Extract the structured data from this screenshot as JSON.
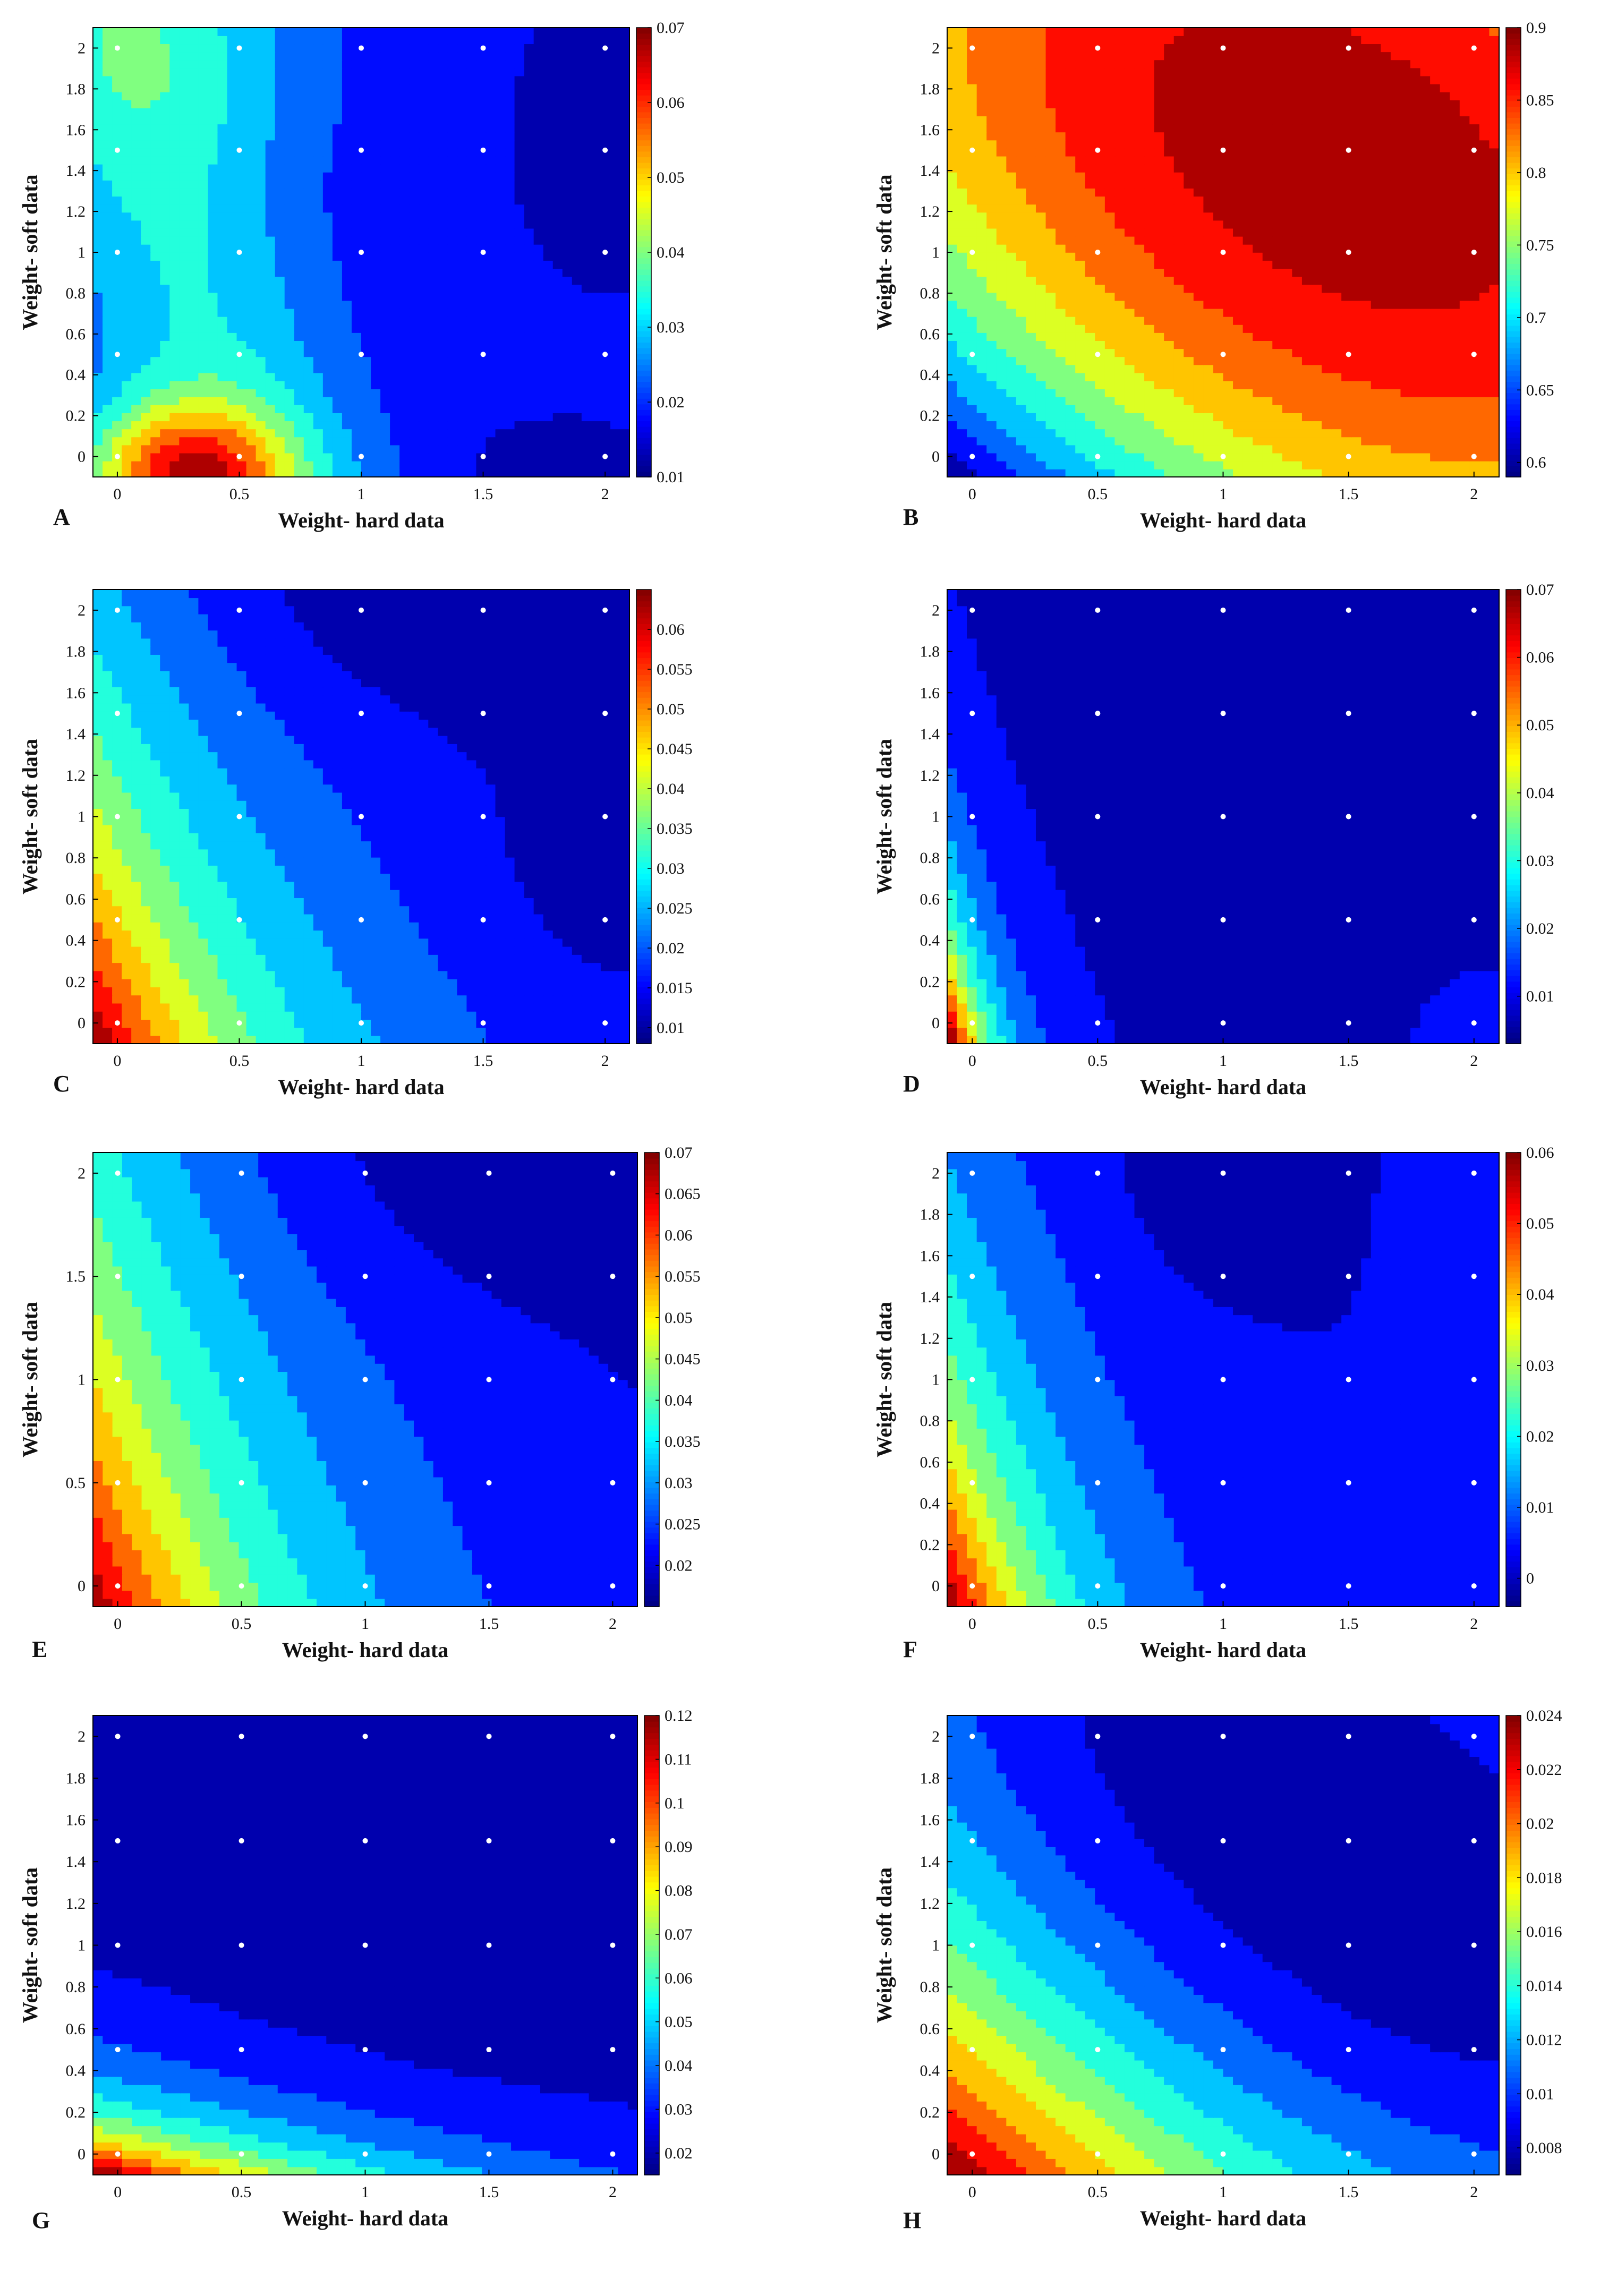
{
  "colormap": "jet",
  "chart_data": [
    {
      "panel": "A",
      "type": "contour",
      "xlabel": "Weight- hard data",
      "ylabel": "Weight- soft data",
      "xlim": [
        -0.1,
        2.1
      ],
      "ylim": [
        -0.1,
        2.1
      ],
      "xticks": [
        "0",
        "0.5",
        "1",
        "1.5",
        "2"
      ],
      "yticks": [
        "0",
        "0.2",
        "0.4",
        "0.6",
        "0.8",
        "1",
        "1.2",
        "1.4",
        "1.6",
        "1.8",
        "2"
      ],
      "colorbar": {
        "min": 0.01,
        "max": 0.07,
        "ticks": [
          "0.01",
          "0.02",
          "0.03",
          "0.04",
          "0.05",
          "0.06",
          "0.07"
        ]
      },
      "sample_points": {
        "x": [
          0,
          0.5,
          1,
          1.5,
          2
        ],
        "y": [
          0,
          0.5,
          1,
          1.5,
          2
        ]
      },
      "field_range": [
        0.012,
        0.068
      ],
      "field": "A"
    },
    {
      "panel": "B",
      "type": "contour",
      "xlabel": "Weight- hard data",
      "ylabel": "Weight- soft data",
      "xlim": [
        -0.1,
        2.1
      ],
      "ylim": [
        -0.1,
        2.1
      ],
      "xticks": [
        "0",
        "0.5",
        "1",
        "1.5",
        "2"
      ],
      "yticks": [
        "0",
        "0.2",
        "0.4",
        "0.6",
        "0.8",
        "1",
        "1.2",
        "1.4",
        "1.6",
        "1.8",
        "2"
      ],
      "colorbar": {
        "min": 0.59,
        "max": 0.9,
        "ticks": [
          "0.6",
          "0.65",
          "0.7",
          "0.75",
          "0.8",
          "0.85",
          "0.9"
        ]
      },
      "sample_points": {
        "x": [
          0,
          0.5,
          1,
          1.5,
          2
        ],
        "y": [
          0,
          0.5,
          1,
          1.5,
          2
        ]
      },
      "field_range": [
        0.6,
        0.89
      ],
      "field": "B"
    },
    {
      "panel": "C",
      "type": "contour",
      "xlabel": "Weight- hard data",
      "ylabel": "Weight- soft data",
      "xlim": [
        -0.1,
        2.1
      ],
      "ylim": [
        -0.1,
        2.1
      ],
      "xticks": [
        "0",
        "0.5",
        "1",
        "1.5",
        "2"
      ],
      "yticks": [
        "0",
        "0.2",
        "0.4",
        "0.6",
        "0.8",
        "1",
        "1.2",
        "1.4",
        "1.6",
        "1.8",
        "2"
      ],
      "colorbar": {
        "min": 0.008,
        "max": 0.065,
        "ticks": [
          "0.01",
          "0.015",
          "0.02",
          "0.025",
          "0.03",
          "0.035",
          "0.04",
          "0.045",
          "0.05",
          "0.055",
          "0.06"
        ]
      },
      "sample_points": {
        "x": [
          0,
          0.5,
          1,
          1.5,
          2
        ],
        "y": [
          0,
          0.5,
          1,
          1.5,
          2
        ]
      },
      "field_range": [
        0.009,
        0.064
      ],
      "field": "C"
    },
    {
      "panel": "D",
      "type": "contour",
      "xlabel": "Weight- hard data",
      "ylabel": "Weight- soft data",
      "xlim": [
        -0.1,
        2.1
      ],
      "ylim": [
        -0.1,
        2.1
      ],
      "xticks": [
        "0",
        "0.5",
        "1",
        "1.5",
        "2"
      ],
      "yticks": [
        "0",
        "0.2",
        "0.4",
        "0.6",
        "0.8",
        "1",
        "1.2",
        "1.4",
        "1.6",
        "1.8",
        "2"
      ],
      "colorbar": {
        "min": 0.003,
        "max": 0.07,
        "ticks": [
          "0.01",
          "0.02",
          "0.03",
          "0.04",
          "0.05",
          "0.06",
          "0.07"
        ]
      },
      "sample_points": {
        "x": [
          0,
          0.5,
          1,
          1.5,
          2
        ],
        "y": [
          0,
          0.5,
          1,
          1.5,
          2
        ]
      },
      "field_range": [
        0.005,
        0.068
      ],
      "field": "D"
    },
    {
      "panel": "E",
      "type": "contour",
      "xlabel": "Weight- hard data",
      "ylabel": "Weight- soft data",
      "xlim": [
        -0.1,
        2.1
      ],
      "ylim": [
        -0.1,
        2.1
      ],
      "xticks": [
        "0",
        "0.5",
        "1",
        "1.5",
        "2"
      ],
      "yticks": [
        "0",
        "0.5",
        "1",
        "1.5",
        "2"
      ],
      "colorbar": {
        "min": 0.015,
        "max": 0.07,
        "ticks": [
          "0.02",
          "0.025",
          "0.03",
          "0.035",
          "0.04",
          "0.045",
          "0.05",
          "0.055",
          "0.06",
          "0.065",
          "0.07"
        ]
      },
      "sample_points": {
        "x": [
          0,
          0.5,
          1,
          1.5,
          2
        ],
        "y": [
          0,
          0.5,
          1,
          1.5,
          2
        ]
      },
      "field_range": [
        0.016,
        0.068
      ],
      "field": "E"
    },
    {
      "panel": "F",
      "type": "contour",
      "xlabel": "Weight- hard data",
      "ylabel": "Weight- soft data",
      "xlim": [
        -0.1,
        2.1
      ],
      "ylim": [
        -0.1,
        2.1
      ],
      "xticks": [
        "0",
        "0.5",
        "1",
        "1.5",
        "2"
      ],
      "yticks": [
        "0",
        "0.2",
        "0.4",
        "0.6",
        "0.8",
        "1",
        "1.2",
        "1.4",
        "1.6",
        "1.8",
        "2"
      ],
      "colorbar": {
        "min": -0.004,
        "max": 0.06,
        "ticks": [
          "0",
          "0.01",
          "0.02",
          "0.03",
          "0.04",
          "0.05",
          "0.06"
        ]
      },
      "sample_points": {
        "x": [
          0,
          0.5,
          1,
          1.5,
          2
        ],
        "y": [
          0,
          0.5,
          1,
          1.5,
          2
        ]
      },
      "field_range": [
        -0.003,
        0.058
      ],
      "field": "F"
    },
    {
      "panel": "G",
      "type": "contour",
      "xlabel": "Weight- hard data",
      "ylabel": "Weight- soft data",
      "xlim": [
        -0.1,
        2.1
      ],
      "ylim": [
        -0.1,
        2.1
      ],
      "xticks": [
        "0",
        "0.5",
        "1",
        "1.5",
        "2"
      ],
      "yticks": [
        "0",
        "0.2",
        "0.4",
        "0.6",
        "0.8",
        "1",
        "1.2",
        "1.4",
        "1.6",
        "1.8",
        "2"
      ],
      "colorbar": {
        "min": 0.015,
        "max": 0.12,
        "ticks": [
          "0.02",
          "0.03",
          "0.04",
          "0.05",
          "0.06",
          "0.07",
          "0.08",
          "0.09",
          "0.1",
          "0.11",
          "0.12"
        ]
      },
      "sample_points": {
        "x": [
          0,
          0.5,
          1,
          1.5,
          2
        ],
        "y": [
          0,
          0.5,
          1,
          1.5,
          2
        ]
      },
      "field_range": [
        0.016,
        0.118
      ],
      "field": "G"
    },
    {
      "panel": "H",
      "type": "contour",
      "xlabel": "Weight- hard data",
      "ylabel": "Weight- soft data",
      "xlim": [
        -0.1,
        2.1
      ],
      "ylim": [
        -0.1,
        2.1
      ],
      "xticks": [
        "0",
        "0.5",
        "1",
        "1.5",
        "2"
      ],
      "yticks": [
        "0",
        "0.2",
        "0.4",
        "0.6",
        "0.8",
        "1",
        "1.2",
        "1.4",
        "1.6",
        "1.8",
        "2"
      ],
      "colorbar": {
        "min": 0.007,
        "max": 0.024,
        "ticks": [
          "0.008",
          "0.01",
          "0.012",
          "0.014",
          "0.016",
          "0.018",
          "0.02",
          "0.022",
          "0.024"
        ]
      },
      "sample_points": {
        "x": [
          0,
          0.5,
          1,
          1.5,
          2
        ],
        "y": [
          0,
          0.5,
          1,
          1.5,
          2
        ]
      },
      "field_range": [
        0.0072,
        0.0238
      ],
      "field": "H"
    }
  ]
}
